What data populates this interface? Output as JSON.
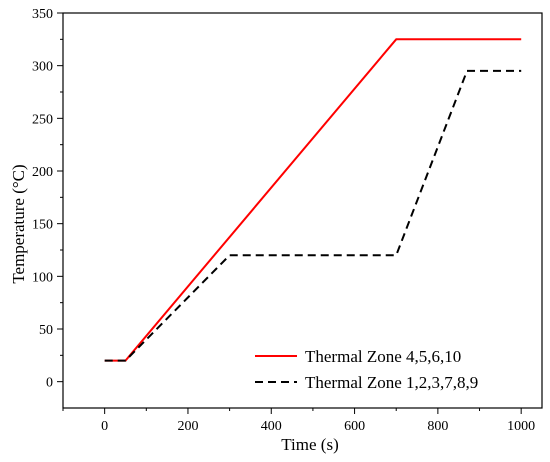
{
  "chart_data": {
    "type": "line",
    "xlabel": "Time (s)",
    "ylabel": "Temperature (°C)",
    "xlim": [
      -100,
      1050
    ],
    "ylim": [
      -25,
      350
    ],
    "x_ticks": [
      0,
      200,
      400,
      600,
      800,
      1000
    ],
    "y_ticks": [
      0,
      50,
      100,
      150,
      200,
      250,
      300,
      350
    ],
    "grid": false,
    "legend_position": "bottom-right",
    "series": [
      {
        "name": "Thermal Zone 4,5,6,10",
        "color": "#ff0000",
        "style": "solid",
        "x": [
          0,
          50,
          700,
          1000
        ],
        "y": [
          20,
          20,
          325,
          325
        ]
      },
      {
        "name": "Thermal Zone 1,2,3,7,8,9",
        "color": "#000000",
        "style": "dashed",
        "x": [
          0,
          50,
          300,
          700,
          870,
          1000
        ],
        "y": [
          20,
          20,
          120,
          120,
          295,
          295
        ]
      }
    ]
  }
}
